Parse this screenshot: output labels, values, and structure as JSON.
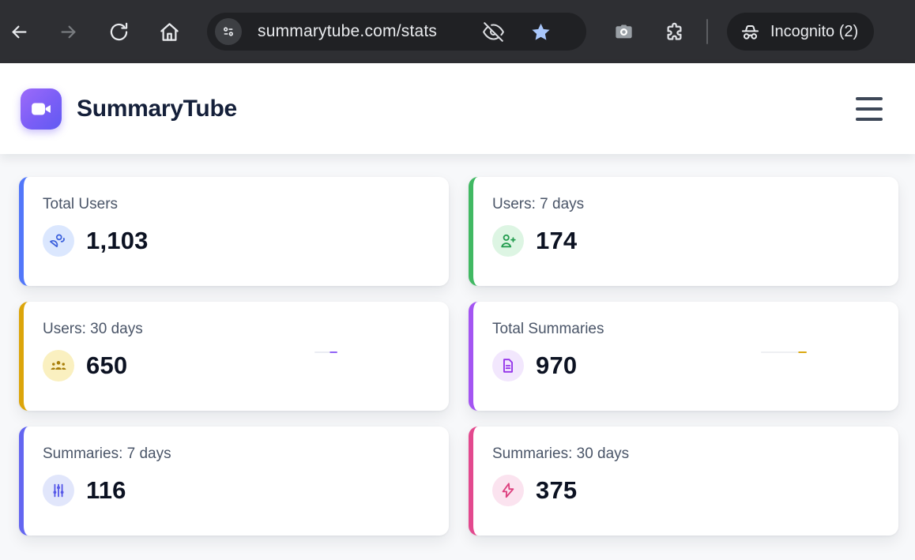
{
  "browser": {
    "url": "summarytube.com/stats",
    "incognito_label": "Incognito (2)",
    "toolbar_icons": [
      "back-icon",
      "forward-icon",
      "reload-icon",
      "home-icon",
      "site-settings-icon",
      "eye-off-icon",
      "bookmark-star-icon",
      "camera-icon",
      "extensions-puzzle-icon",
      "incognito-icon"
    ],
    "colors": {
      "toolbar_bg": "#2e2f33",
      "pill_bg": "#202124",
      "star": "#a9c7fb",
      "icon_light": "#e8eaed",
      "icon_dim": "#797c80"
    }
  },
  "header": {
    "title": "SummaryTube",
    "logo_icon": "video-camera-icon",
    "logo_gradient": [
      "#9d6bfa",
      "#615bf2"
    ]
  },
  "cards": [
    {
      "label": "Total Users",
      "value": "1,103",
      "icon": "users-icon",
      "accent": "#5277fa",
      "icon_bg": "#dbe7fe",
      "icon_color": "#3e63dd"
    },
    {
      "label": "Users: 7 days",
      "value": "174",
      "icon": "user-plus-icon",
      "accent": "#41b963",
      "icon_bg": "#ddf5e3",
      "icon_color": "#259d50"
    },
    {
      "label": "Users: 30 days",
      "value": "650",
      "icon": "user-group-icon",
      "accent": "#dca50a",
      "icon_bg": "#faf0c0",
      "icon_color": "#a97f0a"
    },
    {
      "label": "Total Summaries",
      "value": "970",
      "icon": "file-text-icon",
      "accent": "#a455f2",
      "icon_bg": "#f2e7fd",
      "icon_color": "#9333ea"
    },
    {
      "label": "Summaries: 7 days",
      "value": "116",
      "icon": "sliders-icon",
      "accent": "#6466f1",
      "icon_bg": "#e1e6fb",
      "icon_color": "#5658e8"
    },
    {
      "label": "Summaries: 30 days",
      "value": "375",
      "icon": "zap-icon",
      "accent": "#e3498e",
      "icon_bg": "#fbe3ef",
      "icon_color": "#dd3f7e"
    }
  ]
}
